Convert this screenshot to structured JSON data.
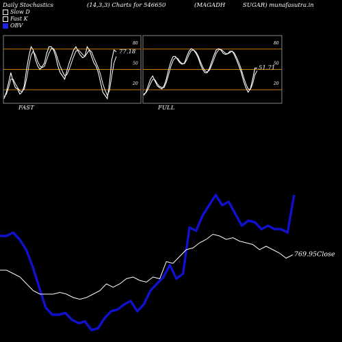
{
  "header": {
    "left": "Daily Stochastics",
    "params": "(14,3,3) Charts for 546650",
    "symbol": "(MAGADH",
    "company": "SUGAR) munafasutra.in"
  },
  "legend": {
    "slow_d": "Slow  D",
    "fast_k": "Fast K",
    "obv": "OBV"
  },
  "colors": {
    "obv": "#1111cc",
    "lines": "#ffffff",
    "levels": "#c77a00",
    "panel_border": "#888888"
  },
  "chart_data": [
    {
      "type": "line",
      "title": "FAST",
      "ylim": [
        0,
        100
      ],
      "levels": [
        20,
        50,
        80
      ],
      "level_labels": [
        "20",
        "50",
        "80"
      ],
      "last_value_label": "77.18",
      "series": [
        {
          "values": [
            5,
            15,
            30,
            45,
            32,
            22,
            20,
            12,
            15,
            25,
            50,
            70,
            85,
            80,
            65,
            55,
            50,
            55,
            60,
            75,
            85,
            85,
            80,
            70,
            55,
            45,
            40,
            35,
            48,
            60,
            70,
            80,
            85,
            78,
            72,
            68,
            70,
            85,
            80,
            70,
            60,
            55,
            45,
            30,
            15,
            10,
            5,
            30,
            65,
            80,
            77
          ]
        },
        {
          "values": [
            8,
            12,
            22,
            35,
            35,
            28,
            22,
            17,
            16,
            20,
            35,
            55,
            72,
            78,
            72,
            62,
            55,
            53,
            55,
            65,
            75,
            82,
            82,
            76,
            65,
            55,
            47,
            40,
            42,
            50,
            60,
            70,
            78,
            80,
            77,
            73,
            70,
            75,
            80,
            77,
            68,
            60,
            52,
            42,
            28,
            18,
            10,
            18,
            40,
            60,
            70
          ]
        }
      ]
    },
    {
      "type": "line",
      "title": "FULL",
      "ylim": [
        0,
        100
      ],
      "levels": [
        20,
        50,
        80
      ],
      "level_labels": [
        "20",
        "50",
        "80"
      ],
      "last_value_label": "51.71",
      "series": [
        {
          "values": [
            10,
            15,
            25,
            35,
            40,
            32,
            25,
            22,
            20,
            25,
            35,
            50,
            62,
            70,
            70,
            65,
            60,
            58,
            60,
            70,
            78,
            82,
            80,
            75,
            68,
            58,
            50,
            45,
            45,
            52,
            62,
            72,
            80,
            82,
            80,
            75,
            73,
            74,
            78,
            78,
            72,
            64,
            55,
            45,
            32,
            22,
            15,
            20,
            35,
            52,
            52
          ]
        },
        {
          "values": [
            12,
            14,
            20,
            28,
            35,
            34,
            28,
            24,
            22,
            22,
            30,
            42,
            55,
            64,
            68,
            67,
            62,
            59,
            59,
            65,
            73,
            79,
            80,
            77,
            71,
            62,
            54,
            48,
            46,
            49,
            57,
            66,
            75,
            80,
            81,
            78,
            75,
            74,
            76,
            78,
            75,
            68,
            60,
            50,
            38,
            28,
            20,
            19,
            28,
            42,
            48
          ]
        }
      ]
    },
    {
      "type": "line",
      "title": "",
      "ylim": [
        0,
        100
      ],
      "last_value_label": "769.95",
      "close_suffix": "Close",
      "series": [
        {
          "name": "OBV",
          "values": [
            60,
            60,
            62,
            58,
            52,
            42,
            30,
            18,
            14,
            14,
            15,
            11,
            9,
            10,
            5,
            6,
            12,
            16,
            17,
            20,
            22,
            16,
            20,
            28,
            32,
            36,
            43,
            35,
            38,
            65,
            63,
            72,
            78,
            84,
            78,
            80,
            73,
            66,
            69,
            68,
            64,
            66,
            64,
            64,
            62,
            84
          ]
        },
        {
          "values": [
            40,
            40,
            38,
            36,
            32,
            28,
            26,
            26,
            26,
            27,
            26,
            24,
            23,
            24,
            26,
            28,
            32,
            30,
            32,
            35,
            36,
            34,
            33,
            36,
            35,
            45,
            44,
            48,
            52,
            53,
            56,
            58,
            61,
            60,
            58,
            59,
            57,
            56,
            55,
            52,
            54,
            52,
            50,
            47,
            49
          ]
        }
      ]
    }
  ]
}
